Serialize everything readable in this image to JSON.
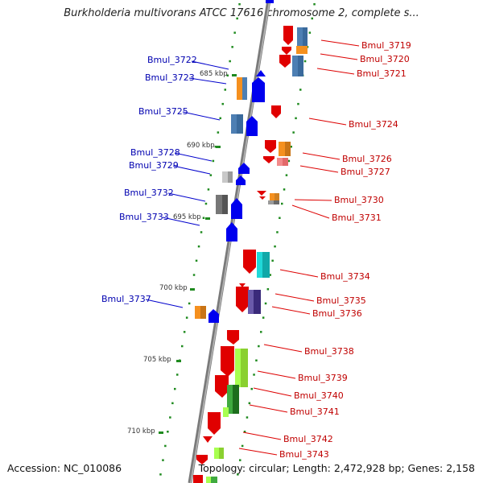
{
  "title": "Burkholderia multivorans ATCC 17616 chromosome 2, complete s...",
  "footer": {
    "accession": "Accession: NC_010086",
    "summary": "Topology: circular; Length: 2,472,928 bp; Genes: 2,158"
  },
  "colors": {
    "backbone": "#8a8a8a",
    "minus_strand": "#e00000",
    "plus_strand": "#0000ee",
    "leader_left": "#0000cc",
    "leader_right": "#dd0000",
    "dot_scale": "#1f8a1f"
  },
  "scale_ticks": [
    "685 kbp",
    "690 kbp",
    "695 kbp",
    "700 kbp",
    "705 kbp",
    "710 kbp"
  ],
  "left_genes": [
    "Bmul_3722",
    "Bmul_3723",
    "Bmul_3725",
    "Bmul_3728",
    "Bmul_3729",
    "Bmul_3732",
    "Bmul_3733",
    "Bmul_3737"
  ],
  "right_genes": [
    "Bmul_3719",
    "Bmul_3720",
    "Bmul_3721",
    "Bmul_3724",
    "Bmul_3726",
    "Bmul_3727",
    "Bmul_3730",
    "Bmul_3731",
    "Bmul_3734",
    "Bmul_3735",
    "Bmul_3736",
    "Bmul_3738",
    "Bmul_3739",
    "Bmul_3740",
    "Bmul_3741",
    "Bmul_3742",
    "Bmul_3743"
  ]
}
